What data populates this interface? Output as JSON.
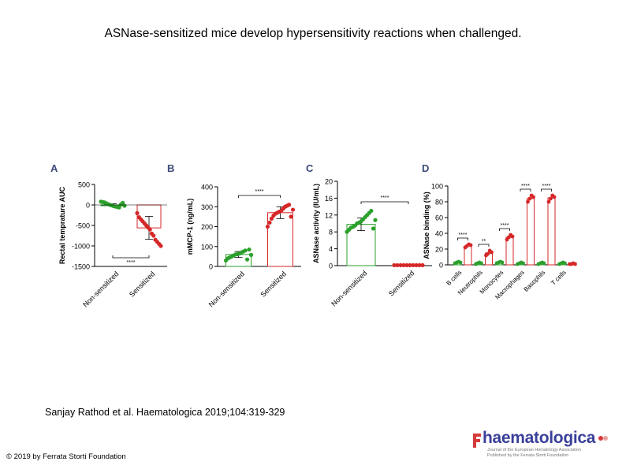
{
  "title": "ASNase-sensitized mice develop hypersensitivity reactions when challenged.",
  "citation": "Sanjay Rathod et al. Haematologica 2019;104:319-329",
  "copyright": "© 2019 by Ferrata Storti Foundation",
  "logo": {
    "word": "haematologica",
    "line1": "Journal of the European Hematology Association",
    "line2": "Published by the Ferrata Storti Foundation",
    "color": "#3a3f9a",
    "accent": "#d63a3a"
  },
  "colors": {
    "green": "#2ca02c",
    "red": "#d62728",
    "axis": "#000000"
  },
  "chart_data": [
    {
      "panel": "A",
      "type": "bar",
      "ylabel": "Rectal temprature AUC",
      "ylim": [
        -1500,
        500
      ],
      "yticks": [
        500,
        0,
        -500,
        -1000,
        -1500
      ],
      "categories": [
        "Non-sensitized",
        "Sensitized"
      ],
      "means": [
        0,
        -560
      ],
      "sd": [
        30,
        280
      ],
      "points": [
        [
          80,
          70,
          60,
          40,
          20,
          0,
          -10,
          -30,
          -40,
          -50,
          -60,
          10,
          50,
          -20
        ],
        [
          -200,
          -300,
          -350,
          -400,
          -450,
          -500,
          -550,
          -600,
          -700,
          -750,
          -850,
          -900,
          -950,
          -1000
        ]
      ],
      "significance": "****",
      "colors": [
        "#2ca02c",
        "#d62728"
      ]
    },
    {
      "panel": "B",
      "type": "bar",
      "ylabel": "mMCP-1 (ng/mL)",
      "ylim": [
        0,
        400
      ],
      "yticks": [
        0,
        100,
        200,
        300,
        400
      ],
      "categories": [
        "Non-sensitized",
        "Sensitized"
      ],
      "means": [
        60,
        270
      ],
      "sd": [
        15,
        30
      ],
      "points": [
        [
          30,
          40,
          45,
          50,
          55,
          60,
          62,
          65,
          70,
          75,
          80,
          35,
          85,
          58
        ],
        [
          200,
          220,
          240,
          255,
          265,
          270,
          275,
          280,
          290,
          300,
          305,
          310,
          250,
          285
        ]
      ],
      "significance": "****",
      "colors": [
        "#2ca02c",
        "#d62728"
      ]
    },
    {
      "panel": "C",
      "type": "bar",
      "ylabel": "ASNase activity (IU/mL)",
      "ylim": [
        0,
        20
      ],
      "yticks": [
        0,
        4,
        8,
        12,
        16,
        20
      ],
      "categories": [
        "Non-sensitized",
        "Sensitized"
      ],
      "means": [
        9.8,
        0.1
      ],
      "sd": [
        1.5,
        0.05
      ],
      "points": [
        [
          8,
          8.5,
          9,
          9.2,
          9.5,
          10,
          10.2,
          10.5,
          11,
          11.5,
          12,
          12.5,
          13,
          8.8,
          10.8
        ],
        [
          0.1,
          0.1,
          0.1,
          0.1,
          0.1,
          0.1,
          0.1,
          0.1,
          0.1,
          0.1
        ]
      ],
      "significance": "****",
      "colors": [
        "#2ca02c",
        "#d62728"
      ]
    },
    {
      "panel": "D",
      "type": "bar",
      "ylabel": "ASNase binding (%)",
      "ylim": [
        0,
        100
      ],
      "yticks": [
        0,
        20,
        40,
        60,
        80,
        100
      ],
      "categories": [
        "B cells",
        "Neutrophils",
        "Monocytes",
        "Macrophages",
        "Basophils",
        "T cells"
      ],
      "series": [
        {
          "group": "Non-sensitized",
          "color": "#2ca02c",
          "means": [
            3,
            2,
            3,
            2,
            2,
            2
          ],
          "points": [
            [
              2,
              3,
              4,
              3
            ],
            [
              1,
              2,
              3,
              2
            ],
            [
              2,
              3,
              4,
              3
            ],
            [
              1,
              2,
              3,
              2
            ],
            [
              1,
              2,
              3,
              2
            ],
            [
              1,
              2,
              3,
              2
            ]
          ]
        },
        {
          "group": "Sensitized",
          "color": "#d62728",
          "means": [
            24,
            15,
            35,
            84,
            85,
            1
          ],
          "points": [
            [
              22,
              24,
              26,
              25
            ],
            [
              12,
              14,
              18,
              16
            ],
            [
              32,
              35,
              38,
              36
            ],
            [
              80,
              84,
              88,
              86
            ],
            [
              80,
              84,
              88,
              86
            ],
            [
              1,
              1,
              2,
              1
            ]
          ]
        }
      ],
      "significance": [
        "****",
        "**",
        "****",
        "****",
        "",
        ""
      ],
      "sig_for_basophils": "****"
    }
  ]
}
